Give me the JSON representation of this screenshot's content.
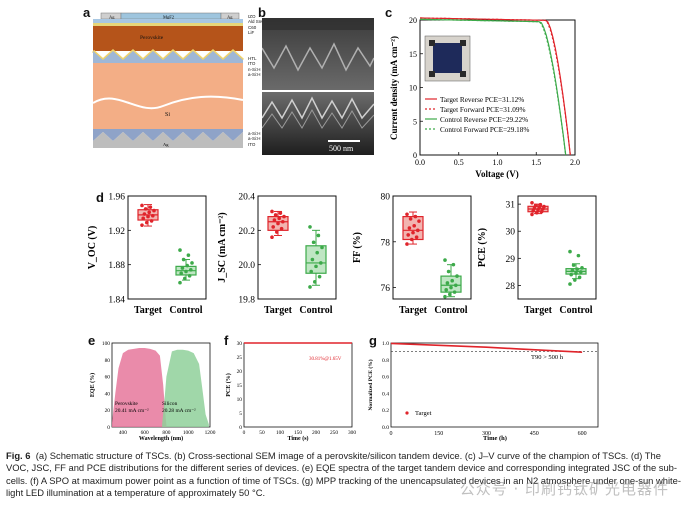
{
  "panels": {
    "a": {
      "letter": "a",
      "layers_top": [
        "Ag",
        "MgF2",
        "Ag"
      ],
      "layers_right_top": [
        "IZO",
        "Ald SnO2",
        "C60",
        "LiF"
      ],
      "perovskite": "Perovskite",
      "layers_mid": [
        "HTL",
        "ITO",
        "n-Si:H (n)",
        "a-Si:H (i)"
      ],
      "si": "Si",
      "layers_bottom": [
        "a-Si:H (i)",
        "a-Si:H (p)",
        "ITO"
      ],
      "bottom_contact": "Ag",
      "colors": {
        "perovskite": "#b5541a",
        "si": "#f3ae86",
        "ag": "#bdbdbd",
        "itl": "#9fb7d6"
      }
    },
    "b": {
      "letter": "b",
      "scale_bar": "500 nm"
    },
    "c": {
      "letter": "c",
      "chart_data": {
        "type": "line",
        "xlabel": "Voltage (V)",
        "ylabel": "Current density (mA cm⁻²)",
        "xlim": [
          0.0,
          2.0
        ],
        "ylim": [
          0,
          20
        ],
        "xticks": [
          0.0,
          0.5,
          1.0,
          1.5,
          2.0
        ],
        "yticks": [
          0,
          5,
          10,
          15,
          20
        ],
        "series": [
          {
            "name": "Target Reverse PCE=31.12%",
            "color": "#e0242b",
            "dash": "solid",
            "jsc": 20.3,
            "voc": 1.94,
            "knee": 1.63
          },
          {
            "name": "Target Forward PCE=31.09%",
            "color": "#e0242b",
            "dash": "dot",
            "jsc": 20.3,
            "voc": 1.94,
            "knee": 1.62
          },
          {
            "name": "Control Reverse PCE=29.22%",
            "color": "#3daa4a",
            "dash": "solid",
            "jsc": 20.1,
            "voc": 1.88,
            "knee": 1.55
          },
          {
            "name": "Control Forward PCE=29.18%",
            "color": "#3daa4a",
            "dash": "dot",
            "jsc": 20.1,
            "voc": 1.88,
            "knee": 1.54
          }
        ]
      }
    },
    "d": {
      "letter": "d",
      "categories": [
        "Target",
        "Control"
      ],
      "chart_data": [
        {
          "type": "box",
          "ylabel": "V_OC (V)",
          "ylim": [
            1.84,
            1.96
          ],
          "yticks": [
            "1.84",
            "1.88",
            "1.92",
            "1.96"
          ],
          "target": {
            "min": 1.925,
            "q1": 1.932,
            "median": 1.938,
            "q3": 1.944,
            "max": 1.95,
            "points": [
              1.926,
              1.929,
              1.931,
              1.934,
              1.936,
              1.937,
              1.939,
              1.941,
              1.943,
              1.945,
              1.947,
              1.949
            ]
          },
          "control": {
            "min": 1.862,
            "q1": 1.868,
            "median": 1.873,
            "q3": 1.878,
            "max": 1.886,
            "points": [
              1.859,
              1.864,
              1.867,
              1.87,
              1.872,
              1.874,
              1.876,
              1.879,
              1.882,
              1.886,
              1.891,
              1.897
            ]
          }
        },
        {
          "type": "box",
          "ylabel": "J_SC (mA cm⁻²)",
          "ylim": [
            19.8,
            20.4
          ],
          "yticks": [
            "19.8",
            "20.0",
            "20.2",
            "20.4"
          ],
          "target": {
            "min": 20.17,
            "q1": 20.2,
            "median": 20.25,
            "q3": 20.28,
            "max": 20.31,
            "points": [
              20.16,
              20.19,
              20.21,
              20.22,
              20.24,
              20.25,
              20.26,
              20.27,
              20.28,
              20.29,
              20.3,
              20.31
            ]
          },
          "control": {
            "min": 19.88,
            "q1": 19.95,
            "median": 20.01,
            "q3": 20.11,
            "max": 20.2,
            "points": [
              19.87,
              19.9,
              19.93,
              19.96,
              19.99,
              20.01,
              20.03,
              20.07,
              20.1,
              20.13,
              20.17,
              20.22
            ]
          }
        },
        {
          "type": "box",
          "ylabel": "FF (%)",
          "ylim": [
            75.5,
            80
          ],
          "yticks": [
            "76",
            "78",
            "80"
          ],
          "target": {
            "min": 77.9,
            "q1": 78.1,
            "median": 78.5,
            "q3": 79.1,
            "max": 79.3,
            "points": [
              77.9,
              78.1,
              78.2,
              78.3,
              78.4,
              78.5,
              78.6,
              78.7,
              78.9,
              79.0,
              79.1,
              79.2
            ]
          },
          "control": {
            "min": 75.6,
            "q1": 75.8,
            "median": 76.1,
            "q3": 76.5,
            "max": 77.0,
            "points": [
              75.6,
              75.7,
              75.8,
              75.9,
              76.0,
              76.1,
              76.2,
              76.3,
              76.5,
              76.7,
              77.0,
              77.2
            ]
          }
        },
        {
          "type": "box",
          "ylabel": "PCE (%)",
          "ylim": [
            27.5,
            31.3
          ],
          "yticks": [
            "28",
            "29",
            "30",
            "31"
          ],
          "target": {
            "min": 30.65,
            "q1": 30.72,
            "median": 30.82,
            "q3": 30.92,
            "max": 31.0,
            "points": [
              30.62,
              30.68,
              30.72,
              30.75,
              30.79,
              30.82,
              30.85,
              30.88,
              30.91,
              30.95,
              30.98,
              31.05
            ]
          },
          "control": {
            "min": 28.25,
            "q1": 28.42,
            "median": 28.52,
            "q3": 28.62,
            "max": 28.8,
            "points": [
              28.05,
              28.2,
              28.3,
              28.4,
              28.45,
              28.5,
              28.55,
              28.6,
              28.65,
              28.75,
              29.1,
              29.25
            ]
          }
        }
      ]
    },
    "e": {
      "letter": "e",
      "chart_data": {
        "type": "area",
        "xlabel": "Wavelength (nm)",
        "ylabel": "EQE (%)",
        "xlim": [
          300,
          1200
        ],
        "ylim": [
          0,
          100
        ],
        "xticks": [
          400,
          600,
          800,
          1000,
          1200
        ],
        "yticks": [
          0,
          20,
          40,
          60,
          80,
          100
        ],
        "series": [
          {
            "name": "Perovskite",
            "color": "#e6779b",
            "x": [
              300,
              330,
              360,
              400,
              450,
              500,
              550,
              600,
              650,
              700,
              740,
              770,
              790,
              800
            ],
            "y": [
              5,
              40,
              70,
              88,
              92,
              93,
              94,
              94,
              93,
              91,
              85,
              50,
              15,
              2
            ]
          },
          {
            "name": "Silicon",
            "color": "#8fd09a",
            "x": [
              760,
              780,
              800,
              850,
              900,
              950,
              1000,
              1050,
              1100,
              1130,
              1160,
              1190
            ],
            "y": [
              3,
              30,
              60,
              90,
              92,
              92,
              91,
              88,
              75,
              45,
              15,
              3
            ]
          }
        ],
        "annotations": {
          "perovskite": [
            "Perovskite",
            "20.41 mA cm⁻²"
          ],
          "silicon": [
            "Silicon",
            "20.28 mA cm⁻²"
          ]
        }
      }
    },
    "f": {
      "letter": "f",
      "chart_data": {
        "type": "line",
        "xlabel": "Time (s)",
        "ylabel": "PCE (%)",
        "xlim": [
          0,
          300
        ],
        "ylim": [
          0,
          30
        ],
        "xticks": [
          0,
          50,
          100,
          150,
          200,
          250,
          300
        ],
        "yticks": [
          0,
          5,
          10,
          15,
          20,
          25,
          30
        ],
        "series": [
          {
            "color": "#e0242b",
            "x": [
              0,
              300
            ],
            "y": [
              30.81,
              30.81
            ]
          }
        ],
        "annotation": "30.81%@1.65V"
      }
    },
    "g": {
      "letter": "g",
      "chart_data": {
        "type": "line",
        "xlabel": "Time (h)",
        "ylabel": "Normalized PCE (%)",
        "xlim": [
          0,
          650
        ],
        "ylim": [
          0.0,
          1.0
        ],
        "xticks": [
          0,
          150,
          300,
          450,
          600
        ],
        "yticks": [
          "0.0",
          "0.2",
          "0.4",
          "0.6",
          "0.8",
          "1.0"
        ],
        "series": [
          {
            "name": "Target",
            "color": "#e0242b",
            "x": [
              0,
              100,
              200,
              300,
              400,
              500,
              600
            ],
            "y": [
              0.995,
              0.98,
              0.965,
              0.95,
              0.93,
              0.91,
              0.89
            ]
          }
        ],
        "reference": 0.9,
        "annotation": "T90 > 500 h"
      }
    }
  },
  "caption": {
    "fig": "Fig. 6",
    "text": "(a) Schematic structure of TSCs. (b) Cross-sectional SEM image of a perovskite/silicon tandem device. (c) J–V curve of the champion of TSCs. (d) The VOC, JSC, FF and PCE distributions for the different series of devices. (e) EQE spectra of the target tandem device and corresponding integrated JSC of the sub-cells. (f) A SPO at maximum power point as a function of time of TSCs. (g) MPP tracking of the unencapsulated devices in an N2 atmosphere under one-sun white-light LED illumination at a temperature of approximately 50 °C."
  },
  "watermark": "公众号 · 印刷钙钛矿光电器件"
}
